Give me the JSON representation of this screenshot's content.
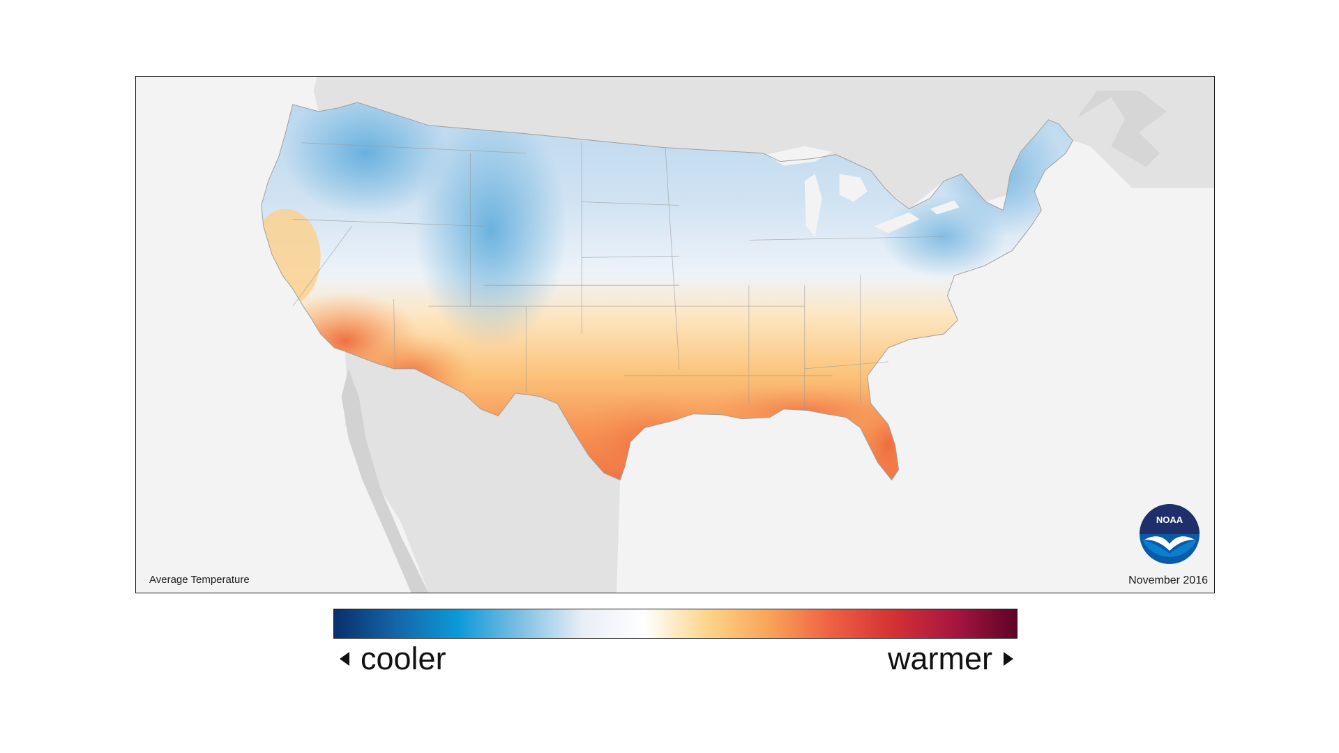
{
  "map": {
    "caption_left": "Average Temperature",
    "caption_right": "November 2016",
    "logo_text": "NOAA",
    "background_color": "#f3f3f3",
    "land_outside_color": "#e2e2e2"
  },
  "legend": {
    "cooler_label": "cooler",
    "warmer_label": "warmer",
    "gradient_colors": [
      "#08306b",
      "#1565a8",
      "#0c9ad8",
      "#7fbfe3",
      "#e8eef6",
      "#ffffff",
      "#fdd58a",
      "#f9a45a",
      "#ee6143",
      "#d33234",
      "#a71640",
      "#5e0328"
    ]
  }
}
